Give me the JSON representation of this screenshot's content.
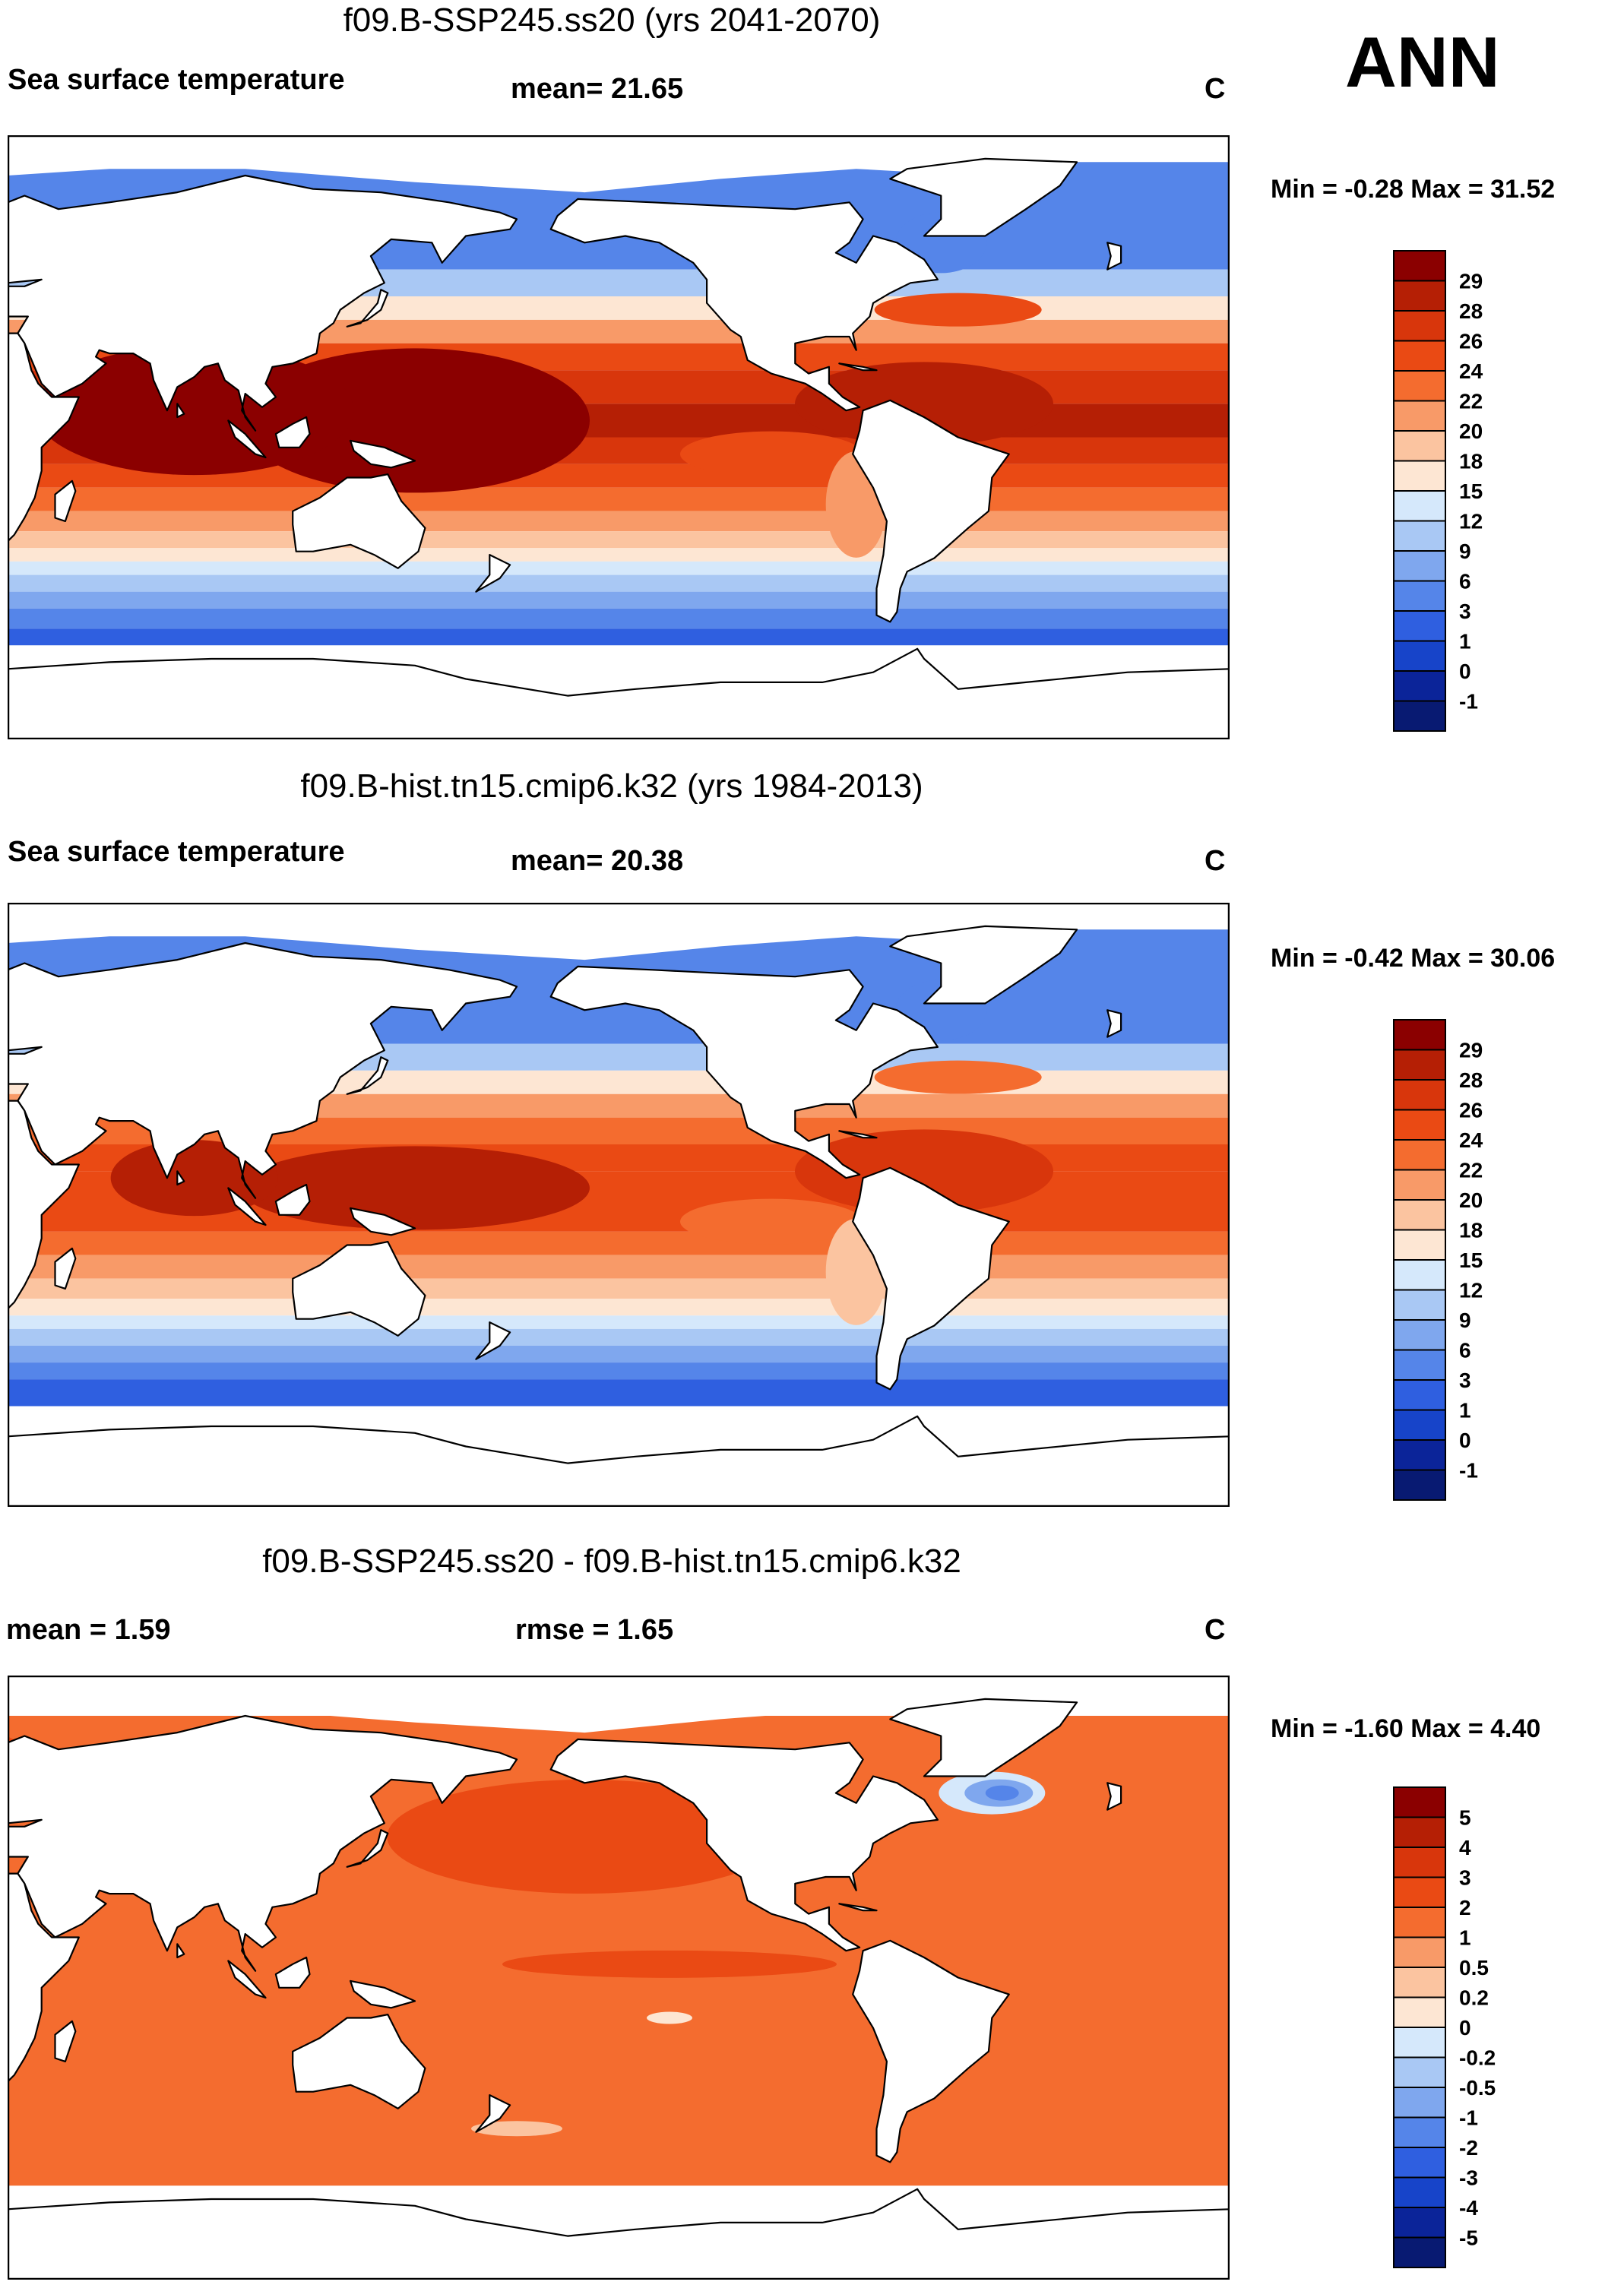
{
  "season": "ANN",
  "panels": [
    {
      "title": "f09.B-SSP245.ss20 (yrs 2041-2070)",
      "left_label": "Sea surface temperature",
      "center_label": "mean=  21.65",
      "units": "C",
      "min_max": "Min =  -0.28 Max =  31.52"
    },
    {
      "title": "f09.B-hist.tn15.cmip6.k32 (yrs 1984-2013)",
      "left_label": "Sea surface temperature",
      "center_label": "mean=  20.38",
      "units": "C",
      "min_max": "Min =  -0.42 Max =  30.06"
    },
    {
      "title": "f09.B-SSP245.ss20 - f09.B-hist.tn15.cmip6.k32",
      "left_label": "mean =    1.59",
      "center_label": "rmse =    1.65",
      "units": "C",
      "min_max": "Min =  -1.60 Max =    4.40"
    }
  ],
  "chart_data": [
    {
      "type": "heatmap",
      "title": "f09.B-SSP245.ss20 (yrs 2041-2070)",
      "variable": "Sea surface temperature",
      "units": "C",
      "mean": 21.65,
      "min": -0.28,
      "max": 31.52,
      "colorbar_levels": [
        "29",
        "28",
        "26",
        "24",
        "22",
        "20",
        "18",
        "15",
        "12",
        "9",
        "6",
        "3",
        "1",
        "0",
        "-1"
      ],
      "colorbar_colors": [
        "#8b0000",
        "#b51f05",
        "#d8360c",
        "#ea4a14",
        "#f46c2f",
        "#f89a68",
        "#fbc4a0",
        "#fde6d3",
        "#d5e8fb",
        "#a9c8f4",
        "#7fa7ee",
        "#5585e9",
        "#2f5fe0",
        "#1744c9",
        "#0b2499",
        "#081a72"
      ]
    },
    {
      "type": "heatmap",
      "title": "f09.B-hist.tn15.cmip6.k32 (yrs 1984-2013)",
      "variable": "Sea surface temperature",
      "units": "C",
      "mean": 20.38,
      "min": -0.42,
      "max": 30.06,
      "colorbar_levels": [
        "29",
        "28",
        "26",
        "24",
        "22",
        "20",
        "18",
        "15",
        "12",
        "9",
        "6",
        "3",
        "1",
        "0",
        "-1"
      ],
      "colorbar_colors": [
        "#8b0000",
        "#b51f05",
        "#d8360c",
        "#ea4a14",
        "#f46c2f",
        "#f89a68",
        "#fbc4a0",
        "#fde6d3",
        "#d5e8fb",
        "#a9c8f4",
        "#7fa7ee",
        "#5585e9",
        "#2f5fe0",
        "#1744c9",
        "#0b2499",
        "#081a72"
      ]
    },
    {
      "type": "heatmap",
      "title": "f09.B-SSP245.ss20 - f09.B-hist.tn15.cmip6.k32",
      "units": "C",
      "mean": 1.59,
      "rmse": 1.65,
      "min": -1.6,
      "max": 4.4,
      "colorbar_levels": [
        "5",
        "4",
        "3",
        "2",
        "1",
        "0.5",
        "0.2",
        "0",
        "-0.2",
        "-0.5",
        "-1",
        "-2",
        "-3",
        "-4",
        "-5"
      ],
      "colorbar_colors": [
        "#8b0000",
        "#b51f05",
        "#d8360c",
        "#ea4a14",
        "#f46c2f",
        "#f89a68",
        "#fbc4a0",
        "#fde6d3",
        "#d5e8fb",
        "#a9c8f4",
        "#7fa7ee",
        "#5585e9",
        "#2f5fe0",
        "#1744c9",
        "#0b2499",
        "#081a72"
      ]
    }
  ]
}
